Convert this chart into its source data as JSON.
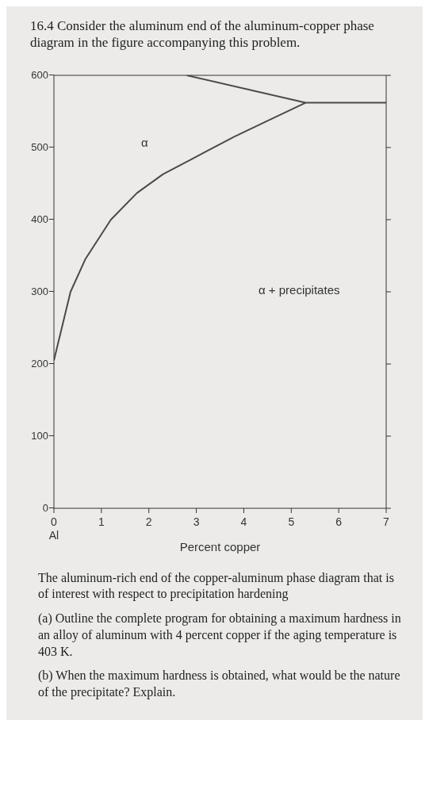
{
  "chart_data": {
    "type": "line",
    "title": "16.4 Consider the aluminum end of the aluminum-copper phase diagram in the figure accompanying this problem.",
    "xlabel": "Percent copper",
    "xlim": [
      0,
      7
    ],
    "ylim": [
      0,
      600
    ],
    "xticks": [
      {
        "value": 0,
        "label": "0\nAl"
      },
      1,
      2,
      3,
      4,
      5,
      6,
      7
    ],
    "yticks": [
      0,
      100,
      200,
      300,
      400,
      500,
      600
    ],
    "series": [
      {
        "color": "#4a4a4a",
        "x": [
          0,
          0.35,
          0.66,
          1.2,
          1.75,
          2.3,
          2.85,
          3.8,
          4.5,
          5.3
        ],
        "values": [
          205,
          300,
          345,
          400,
          437,
          463,
          482,
          515,
          537,
          562
        ]
      },
      {
        "color": "#4a4a4a",
        "x": [
          2.8,
          5.3,
          7
        ],
        "values": [
          600,
          562,
          562
        ]
      }
    ],
    "annotations": [
      "α",
      "α + precipitates",
      "The aluminum-rich end of the copper-aluminum phase diagram that is of interest with respect to precipitation hardening",
      "(a) Outline the complete program for obtaining a maximum hardness in an alloy of aluminum with 4 percent copper if the aging temperature is 403 K.",
      "(b) When the maximum hardness is obtained, what would be the nature of the precipitate? Explain."
    ],
    "grid": false,
    "marker": "none",
    "line_style": "solid"
  }
}
